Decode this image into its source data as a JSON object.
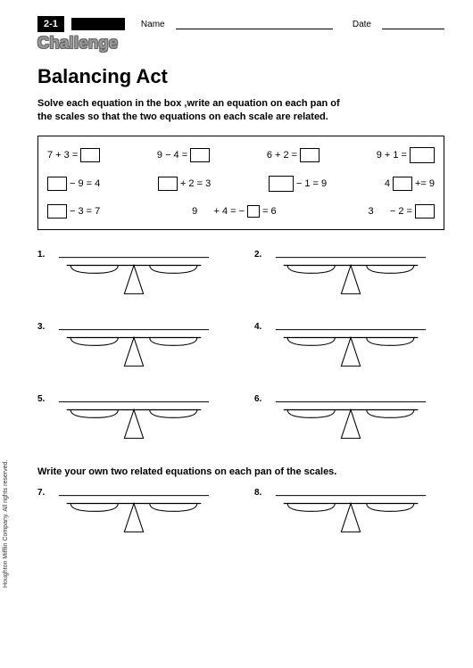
{
  "header": {
    "badge": "2-1",
    "name_label": "Name",
    "date_label": "Date",
    "challenge": "Challenge"
  },
  "title": "Balancing Act",
  "instructions_line1": "Solve each equation in the box  ,write an equation on each pan of",
  "instructions_line2": "the scales so that the two equations on each scale are related.",
  "equations": {
    "row1": {
      "a": "7 + 3 =",
      "b": "9 − 4 =",
      "c": "6 + 2 =",
      "d": "9 + 1 ="
    },
    "row2": {
      "a_suffix": "− 9 = 4",
      "b_suffix": "+ 2 = 3",
      "c_suffix": "− 1 = 9",
      "d_prefix": "4",
      "d_suffix": "+= 9"
    },
    "row3": {
      "a_suffix": "− 3 = 7",
      "b_prefix": "9",
      "b_mid": "+ 4 = −",
      "b_end": "= 6",
      "c_prefix": "3",
      "c_suffix": "− 2 ="
    }
  },
  "scales": {
    "items": [
      {
        "num": "1."
      },
      {
        "num": "2."
      },
      {
        "num": "3."
      },
      {
        "num": "4."
      },
      {
        "num": "5."
      },
      {
        "num": "6."
      }
    ],
    "own_items": [
      {
        "num": "7."
      },
      {
        "num": "8."
      }
    ]
  },
  "write_own": "Write your own two related equations on each pan of the scales.",
  "copyright": "Houghton Mifflin Company. All rights reserved.",
  "colors": {
    "stroke": "#000000",
    "bg": "#ffffff"
  }
}
